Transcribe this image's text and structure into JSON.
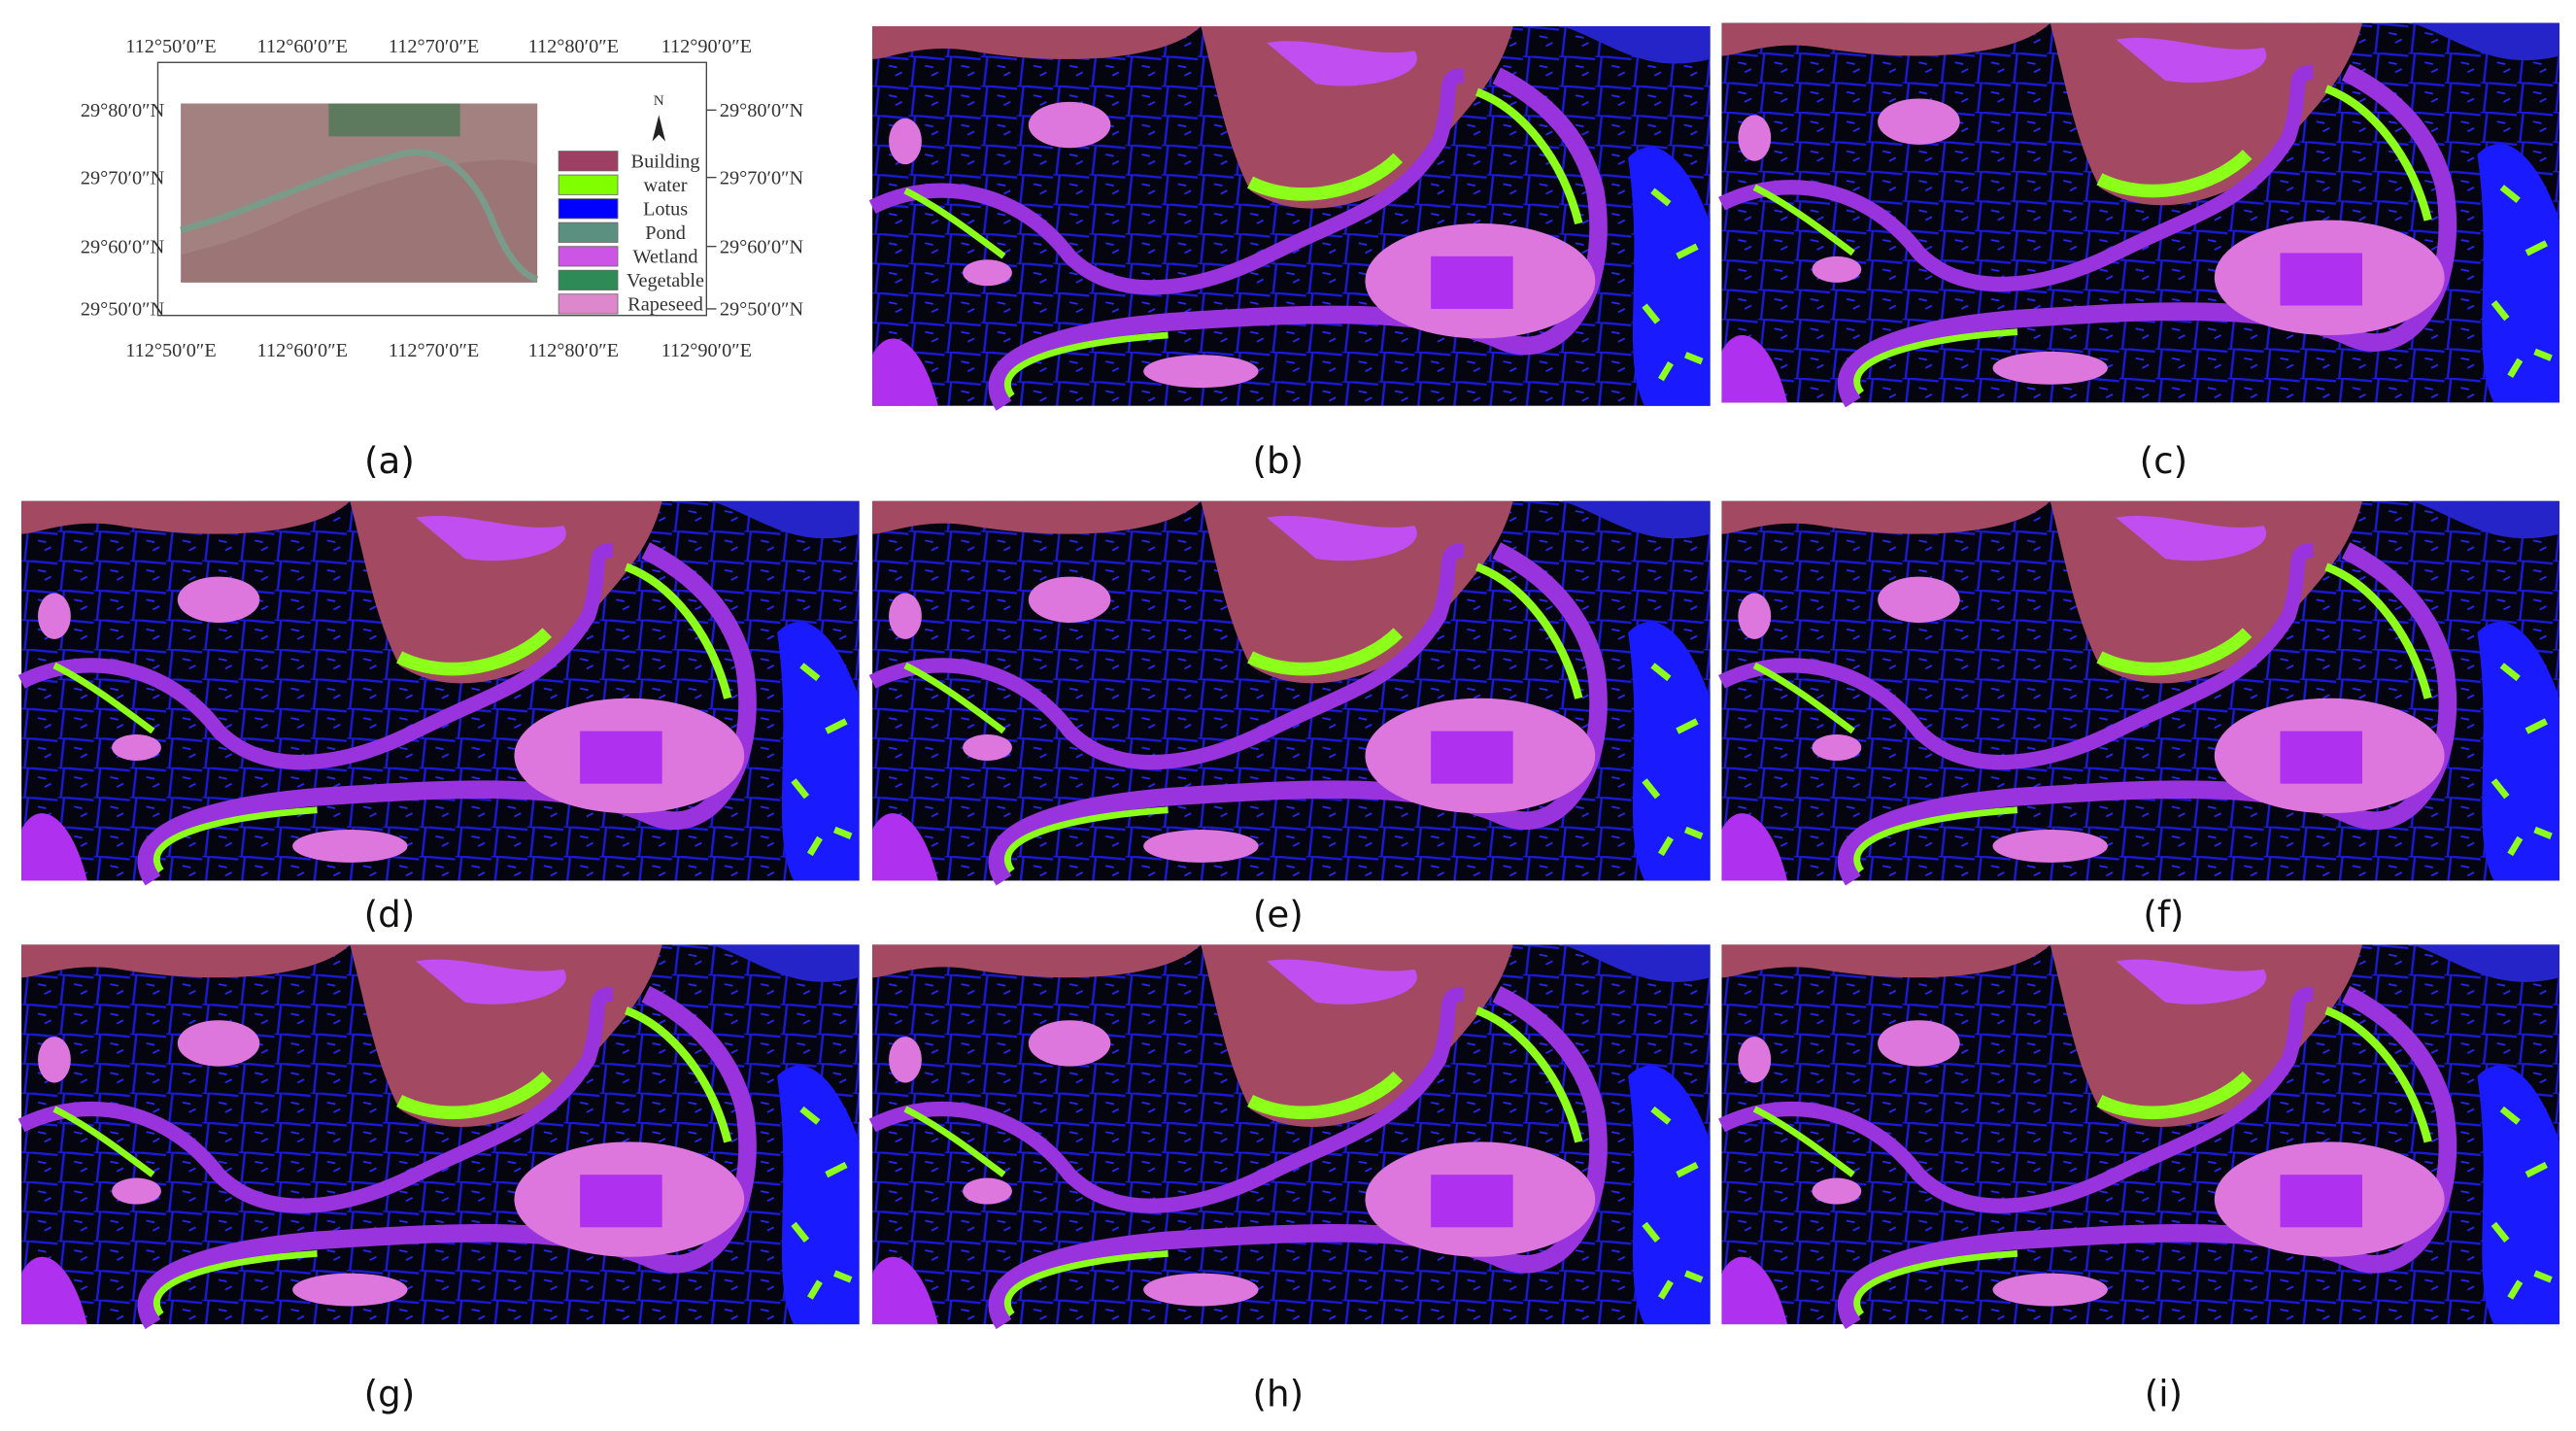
{
  "panel_a": {
    "top_ticks": [
      "112°50′0″E",
      "112°60′0″E",
      "112°70′0″E",
      "112°80′0″E",
      "112°90′0″E"
    ],
    "bottom_ticks": [
      "112°50′0″E",
      "112°60′0″E",
      "112°70′0″E",
      "112°80′0″E",
      "112°90′0″E"
    ],
    "left_ticks": [
      "29°80′0″N",
      "29°70′0″N",
      "29°60′0″N",
      "29°50′0″N"
    ],
    "right_ticks": [
      "29°80′0″N",
      "29°70′0″N",
      "29°60′0″N",
      "29°50′0″N"
    ],
    "north": "N",
    "legend": [
      {
        "label": "Building",
        "color": "#9c3f62"
      },
      {
        "label": "water",
        "color": "#7fff00"
      },
      {
        "label": "Lotus",
        "color": "#0000ff"
      },
      {
        "label": "Pond",
        "color": "#5b8f80"
      },
      {
        "label": "Wetland",
        "color": "#cc55e6"
      },
      {
        "label": "Vegetable",
        "color": "#2e8b57"
      },
      {
        "label": "Rapeseed",
        "color": "#dd88cc"
      }
    ]
  },
  "captions": [
    "(a)",
    "(b)",
    "(c)",
    "(d)",
    "(e)",
    "(f)",
    "(g)",
    "(h)",
    "(i)"
  ]
}
